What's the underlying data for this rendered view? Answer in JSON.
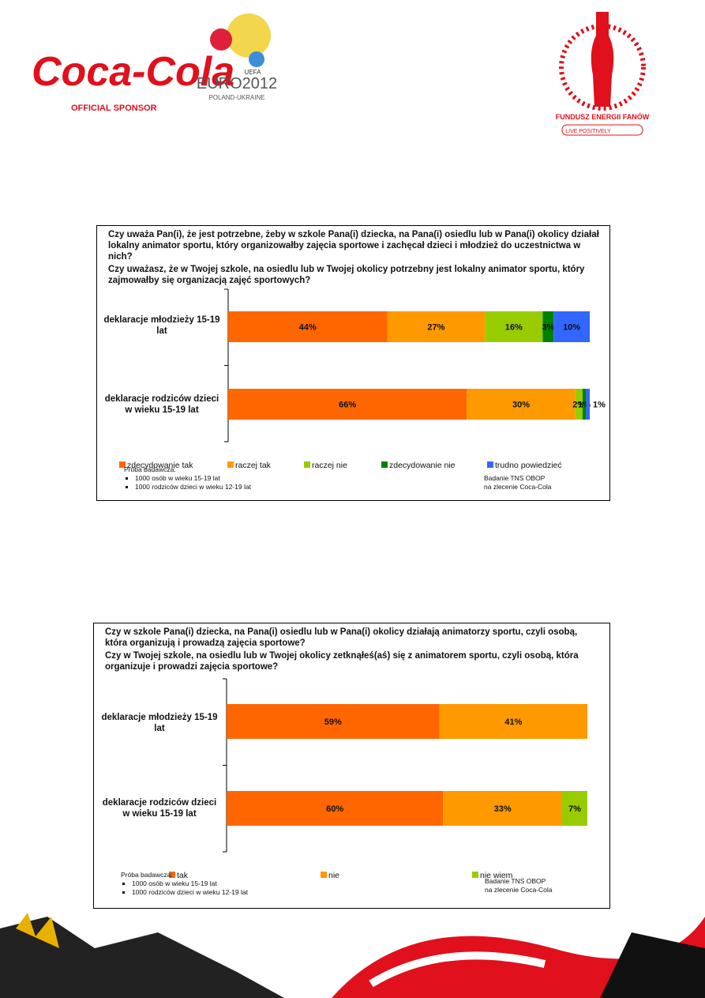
{
  "header": {
    "brand": "Coca-Cola",
    "sponsor": "OFFICIAL SPONSOR",
    "uefa": "UEFA",
    "euro": "EURO2012",
    "hosts": "POLAND-UKRAINE",
    "fund": "FUNDUSZ ENERGII FANÓW",
    "slogan": "LIVE POSITIVELY"
  },
  "chart_data": [
    {
      "type": "bar",
      "orientation": "horizontal",
      "stacked": true,
      "title": "Czy uważa Pan(i), że jest potrzebne, żeby w szkole Pana(i) dziecka, na Pana(i) osiedlu lub w Pana(i) okolicy działał lokalny animator sportu, który organizowałby zajęcia sportowe i zachęcał dzieci i młodzież do uczestnictwa w nich?",
      "subtitle": "Czy uważasz, że w Twojej szkole, na osiedlu lub w Twojej okolicy potrzebny jest lokalny animator sportu, który zajmowałby się organizacją zajęć sportowych?",
      "categories": [
        "deklaracje młodzieży 15-19 lat",
        "deklaracje rodziców dzieci w wieku 15-19 lat"
      ],
      "xlim": [
        0,
        100
      ],
      "series": [
        {
          "name": "zdecydowanie tak",
          "color": "#ff6600",
          "values": [
            44,
            66
          ],
          "value_labels": [
            "44%",
            "66%"
          ]
        },
        {
          "name": "raczej tak",
          "color": "#ff9900",
          "values": [
            27,
            30
          ],
          "value_labels": [
            "27%",
            "30%"
          ]
        },
        {
          "name": "raczej nie",
          "color": "#99cc00",
          "values": [
            16,
            2
          ],
          "value_labels": [
            "16%",
            "2%"
          ]
        },
        {
          "name": "zdecydowanie nie",
          "color": "#008000",
          "values": [
            3,
            1
          ],
          "value_labels": [
            "3%",
            "1%"
          ]
        },
        {
          "name": "trudno powiedzieć",
          "color": "#3366ff",
          "values": [
            10,
            1
          ],
          "value_labels": [
            "10%",
            "1%"
          ]
        }
      ],
      "sample": {
        "label": "Próba badawcza:",
        "items": [
          "1000 osób w wieku 15-19 lat",
          "1000 rodziców dzieci w wieku 12-19 lat"
        ]
      },
      "source": [
        "Badanie TNS OBOP",
        "na zlecenie Coca-Cola"
      ]
    },
    {
      "type": "bar",
      "orientation": "horizontal",
      "stacked": true,
      "title": "Czy w szkole Pana(i) dziecka, na Pana(i) osiedlu lub w Pana(i) okolicy działają animatorzy sportu, czyli osobą, która organizują i prowadzą zajęcia sportowe?",
      "subtitle": "Czy w Twojej szkole, na osiedlu lub w Twojej okolicy zetknąłeś(aś) się z animatorem sportu, czyli osobą, która organizuje i prowadzi zajęcia sportowe?",
      "categories": [
        "deklaracje młodzieży 15-19 lat",
        "deklaracje rodziców dzieci w wieku 15-19 lat"
      ],
      "xlim": [
        0,
        100
      ],
      "series": [
        {
          "name": "tak",
          "color": "#ff6600",
          "values": [
            59,
            60
          ],
          "value_labels": [
            "59%",
            "60%"
          ]
        },
        {
          "name": "nie",
          "color": "#ff9900",
          "values": [
            41,
            33
          ],
          "value_labels": [
            "41%",
            "33%"
          ]
        },
        {
          "name": "nie wiem",
          "color": "#99cc00",
          "values": [
            null,
            7
          ],
          "value_labels": [
            null,
            "7%"
          ]
        }
      ],
      "sample": {
        "label": "Próba badawcza:",
        "items": [
          "1000 osób w wieku 15-19 lat",
          "1000 rodziców dzieci w wieku 12-19 lat"
        ]
      },
      "source": [
        "Badanie TNS OBOP",
        "na zlecenie Coca-Cola"
      ]
    }
  ]
}
